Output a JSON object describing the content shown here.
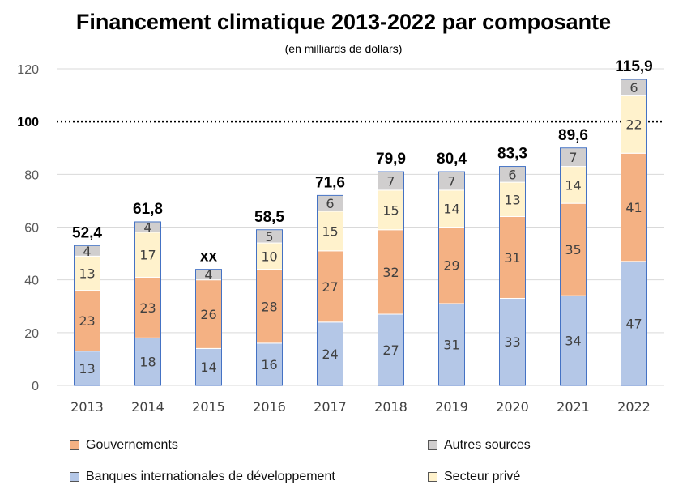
{
  "chart_data": {
    "type": "bar",
    "stacked": true,
    "title": "Financement climatique 2013-2022 par composante",
    "subtitle": "(en milliards de dollars)",
    "categories": [
      "2013",
      "2014",
      "2015",
      "2016",
      "2017",
      "2018",
      "2019",
      "2020",
      "2021",
      "2022"
    ],
    "series": [
      {
        "name": "Banques internationales de développement",
        "color": "#b4c7e7",
        "values": [
          13,
          18,
          14,
          16,
          24,
          27,
          31,
          33,
          34,
          47
        ],
        "labels": [
          "13",
          "18",
          "14",
          "16",
          "24",
          "27",
          "31",
          "33",
          "34",
          "47"
        ]
      },
      {
        "name": "Gouvernements",
        "color": "#f4b183",
        "values": [
          23,
          23,
          26,
          28,
          27,
          32,
          29,
          31,
          35,
          41
        ],
        "labels": [
          "23",
          "23",
          "26",
          "28",
          "27",
          "32",
          "29",
          "31",
          "35",
          "41"
        ]
      },
      {
        "name": "Secteur privé",
        "color": "#fff2cc",
        "values": [
          13,
          17,
          0,
          10,
          15,
          15,
          14,
          13,
          14,
          22
        ],
        "labels": [
          "13",
          "17",
          "",
          "10",
          "15",
          "15",
          "14",
          "13",
          "14",
          "22"
        ]
      },
      {
        "name": "Autres sources",
        "color": "#d0cece",
        "values": [
          4,
          4,
          4,
          5,
          6,
          7,
          7,
          6,
          7,
          6
        ],
        "labels": [
          "4",
          "4",
          "4",
          "5",
          "6",
          "7",
          "7",
          "6",
          "7",
          "6"
        ]
      }
    ],
    "totals": [
      "52,4",
      "61,8",
      "xx",
      "58,5",
      "71,6",
      "79,9",
      "80,4",
      "83,3",
      "89,6",
      "115,9"
    ],
    "ylim": [
      0,
      120
    ],
    "yticks": [
      "0",
      "20",
      "40",
      "60",
      "80",
      "100",
      "120"
    ],
    "reference_line": {
      "value": 100,
      "label": "100",
      "style": "dotted"
    },
    "grid": true,
    "legend": [
      {
        "name": "Gouvernements",
        "color": "#f4b183"
      },
      {
        "name": "Autres sources",
        "color": "#d0cece"
      },
      {
        "name": "Banques internationales de développement",
        "color": "#b4c7e7"
      },
      {
        "name": "Secteur privé",
        "color": "#fff2cc"
      }
    ],
    "legend_placement": "bottom"
  }
}
